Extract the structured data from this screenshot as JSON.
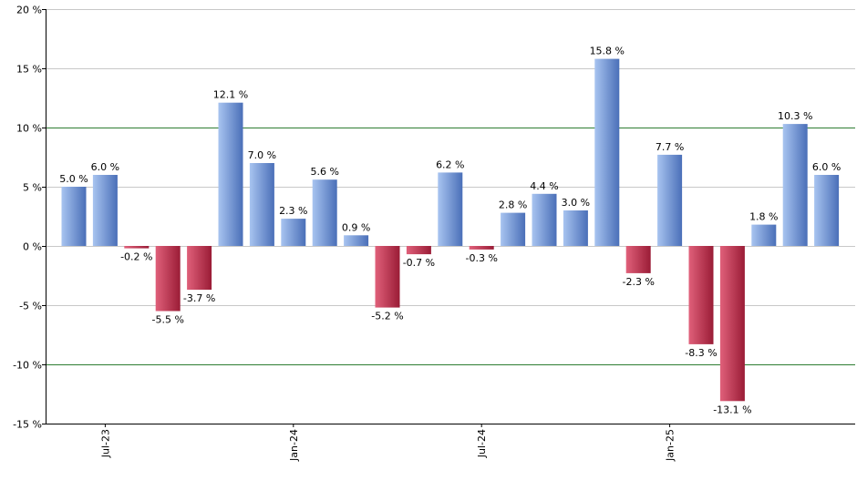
{
  "chart_data": {
    "type": "bar",
    "title": "",
    "xlabel": "",
    "ylabel": "",
    "ylim": [
      -15,
      20
    ],
    "y_ticks": [
      20,
      15,
      10,
      5,
      0,
      -5,
      -10,
      -15
    ],
    "y_tick_labels": [
      "20 %",
      "15 %",
      "10 %",
      "5 %",
      "0 %",
      "-5 %",
      "-10 %",
      "-15 %"
    ],
    "reference_lines": [
      10,
      -10
    ],
    "x_tick_labels": [
      {
        "label": "Jul-23",
        "index": 1
      },
      {
        "label": "Jan-24",
        "index": 7
      },
      {
        "label": "Jul-24",
        "index": 13
      },
      {
        "label": "Jan-25",
        "index": 19
      }
    ],
    "values": [
      5.0,
      6.0,
      -0.2,
      -5.5,
      -3.7,
      12.1,
      7.0,
      2.3,
      5.6,
      0.9,
      -5.2,
      -0.7,
      6.2,
      -0.3,
      2.8,
      4.4,
      3.0,
      15.8,
      -2.3,
      7.7,
      -8.3,
      -13.1,
      1.8,
      10.3,
      6.0
    ],
    "labels": [
      "5.0 %",
      "6.0 %",
      "-0.2 %",
      "-5.5 %",
      "-3.7 %",
      "12.1 %",
      "7.0 %",
      "2.3 %",
      "5.6 %",
      "0.9 %",
      "-5.2 %",
      "-0.7 %",
      "6.2 %",
      "-0.3 %",
      "2.8 %",
      "4.4 %",
      "3.0 %",
      "15.8 %",
      "-2.3 %",
      "7.7 %",
      "-8.3 %",
      "-13.1 %",
      "1.8 %",
      "10.3 %",
      "6.0 %"
    ],
    "colors": {
      "positive_light": "#a8c4f0",
      "positive_dark": "#4a6fb8",
      "negative_light": "#e0607a",
      "negative_dark": "#9a1c36",
      "grid": "#c8c8c8",
      "reference": "#2e7d32"
    }
  }
}
